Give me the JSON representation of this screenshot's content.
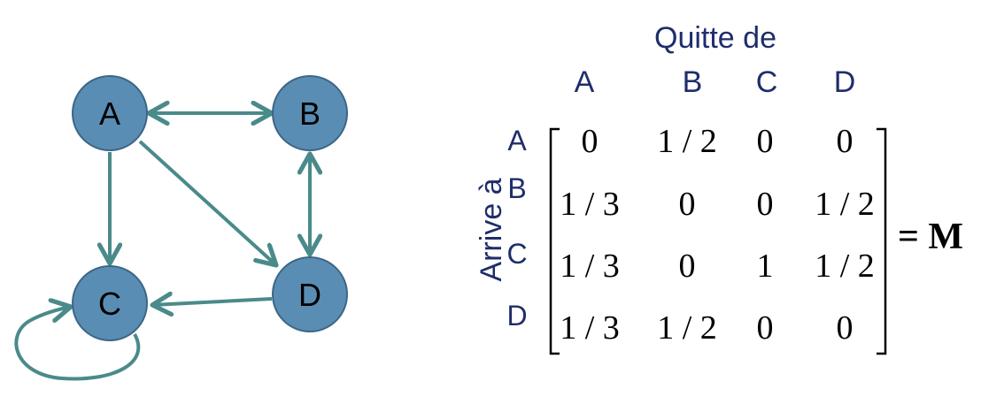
{
  "graph": {
    "nodes": [
      {
        "id": "A",
        "label": "A"
      },
      {
        "id": "B",
        "label": "B"
      },
      {
        "id": "C",
        "label": "C"
      },
      {
        "id": "D",
        "label": "D"
      }
    ],
    "edges": [
      {
        "from": "A",
        "to": "B",
        "bidirectional": true
      },
      {
        "from": "A",
        "to": "C",
        "bidirectional": false
      },
      {
        "from": "A",
        "to": "D",
        "bidirectional": false
      },
      {
        "from": "B",
        "to": "D",
        "bidirectional": true
      },
      {
        "from": "D",
        "to": "C",
        "bidirectional": false
      },
      {
        "from": "C",
        "to": "C",
        "bidirectional": false
      }
    ],
    "colors": {
      "node_fill": "#5a8db4",
      "node_stroke": "#3c6686",
      "edge": "#4a8a8a"
    }
  },
  "matrix": {
    "column_title": "Quitte de",
    "row_title": "Arrive à",
    "columns": [
      "A",
      "B",
      "C",
      "D"
    ],
    "rows": [
      "A",
      "B",
      "C",
      "D"
    ],
    "cells": [
      [
        "0",
        "1/2",
        "0",
        "0"
      ],
      [
        "1/3",
        "0",
        "0",
        "1/2"
      ],
      [
        "1/3",
        "0",
        "1",
        "1/2"
      ],
      [
        "1/3",
        "1/2",
        "0",
        "0"
      ]
    ],
    "equals_label": "= M",
    "text_color": "#1f2d6b"
  }
}
